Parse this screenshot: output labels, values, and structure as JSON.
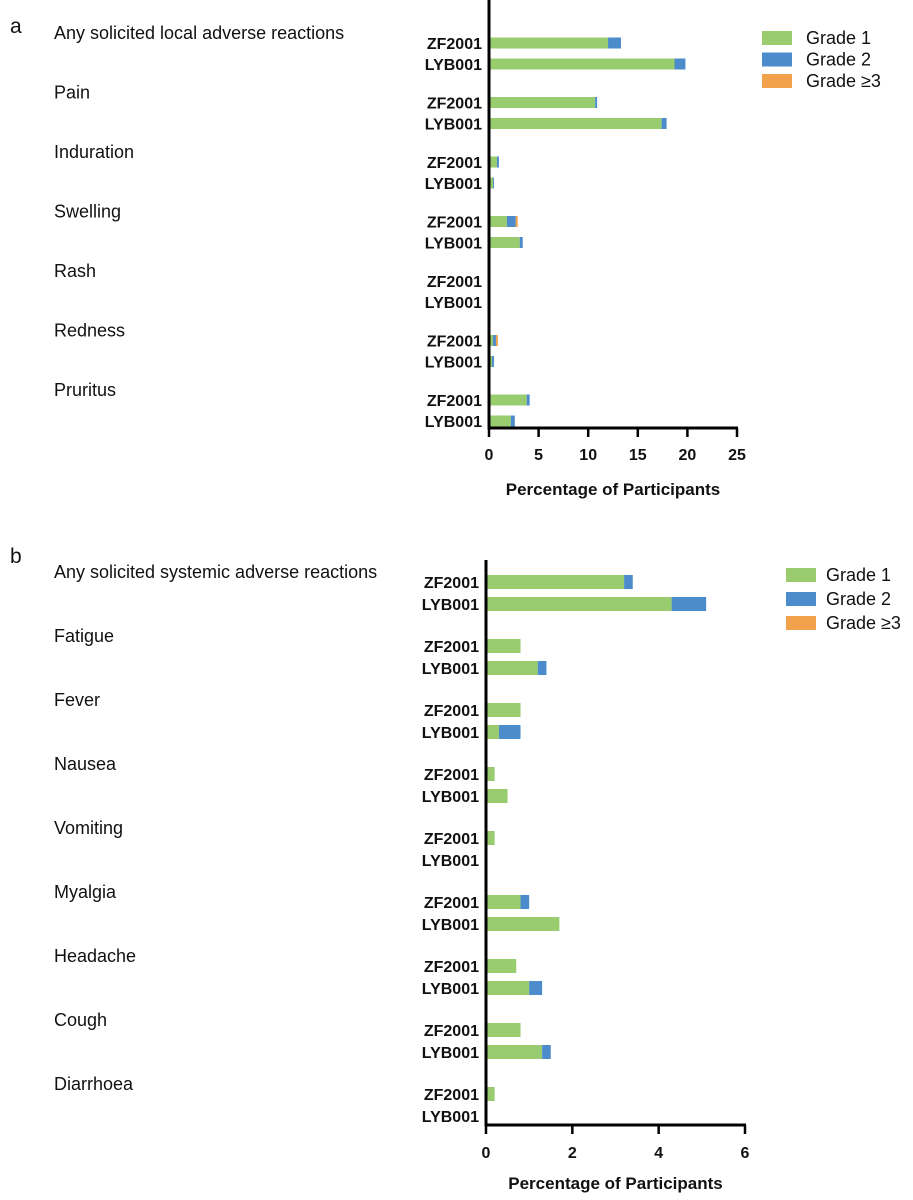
{
  "colors": {
    "grade1": "#98cc6f",
    "grade2": "#4c8ccc",
    "grade3": "#f2a24b",
    "axis": "#000000"
  },
  "chart_data": [
    {
      "type": "bar",
      "orientation": "horizontal",
      "stacked": true,
      "panel": "a",
      "categories": [
        "Any solicited local adverse reactions",
        "Pain",
        "Induration",
        "Swelling",
        "Rash",
        "Redness",
        "Pruritus"
      ],
      "groups": [
        "ZF2001",
        "LYB001"
      ],
      "series": [
        {
          "name": "Grade 1",
          "values": [
            [
              12.0,
              18.7
            ],
            [
              10.7,
              17.4
            ],
            [
              0.8,
              0.4
            ],
            [
              1.8,
              3.1
            ],
            [
              0,
              0
            ],
            [
              0.4,
              0.3
            ],
            [
              3.8,
              2.2
            ]
          ]
        },
        {
          "name": "Grade 2",
          "values": [
            [
              1.3,
              1.1
            ],
            [
              0.2,
              0.5
            ],
            [
              0.2,
              0.1
            ],
            [
              0.9,
              0.3
            ],
            [
              0,
              0
            ],
            [
              0.3,
              0.2
            ],
            [
              0.3,
              0.4
            ]
          ]
        },
        {
          "name": "Grade ≥3",
          "values": [
            [
              0,
              0
            ],
            [
              0,
              0
            ],
            [
              0,
              0
            ],
            [
              0.2,
              0
            ],
            [
              0,
              0
            ],
            [
              0.2,
              0
            ],
            [
              0,
              0
            ]
          ]
        }
      ],
      "xlabel": "Percentage of Participants",
      "xlim": [
        0,
        25
      ],
      "xticks": [
        0,
        5,
        10,
        15,
        20,
        25
      ],
      "grid": false,
      "legend_position": "top-right"
    },
    {
      "type": "bar",
      "orientation": "horizontal",
      "stacked": true,
      "panel": "b",
      "categories": [
        "Any solicited systemic adverse reactions",
        "Fatigue",
        "Fever",
        "Nausea",
        "Vomiting",
        "Myalgia",
        "Headache",
        "Cough",
        "Diarrhoea"
      ],
      "groups": [
        "ZF2001",
        "LYB001"
      ],
      "series": [
        {
          "name": "Grade 1",
          "values": [
            [
              3.2,
              4.3
            ],
            [
              0.8,
              1.2
            ],
            [
              0.8,
              0.3
            ],
            [
              0.2,
              0.5
            ],
            [
              0.2,
              0
            ],
            [
              0.8,
              1.7
            ],
            [
              0.7,
              1.0
            ],
            [
              0.8,
              1.3
            ],
            [
              0.2,
              0
            ]
          ]
        },
        {
          "name": "Grade 2",
          "values": [
            [
              0.2,
              0.8
            ],
            [
              0,
              0.2
            ],
            [
              0,
              0.5
            ],
            [
              0,
              0
            ],
            [
              0,
              0
            ],
            [
              0.2,
              0
            ],
            [
              0,
              0.3
            ],
            [
              0,
              0.2
            ],
            [
              0,
              0
            ]
          ]
        },
        {
          "name": "Grade ≥3",
          "values": [
            [
              0,
              0
            ],
            [
              0,
              0
            ],
            [
              0,
              0
            ],
            [
              0,
              0
            ],
            [
              0,
              0
            ],
            [
              0,
              0
            ],
            [
              0,
              0
            ],
            [
              0,
              0
            ],
            [
              0,
              0
            ]
          ]
        }
      ],
      "xlabel": "Percentage of Participants",
      "xlim": [
        0,
        6
      ],
      "xticks": [
        0,
        2,
        4,
        6
      ],
      "grid": false,
      "legend_position": "top-right"
    }
  ]
}
